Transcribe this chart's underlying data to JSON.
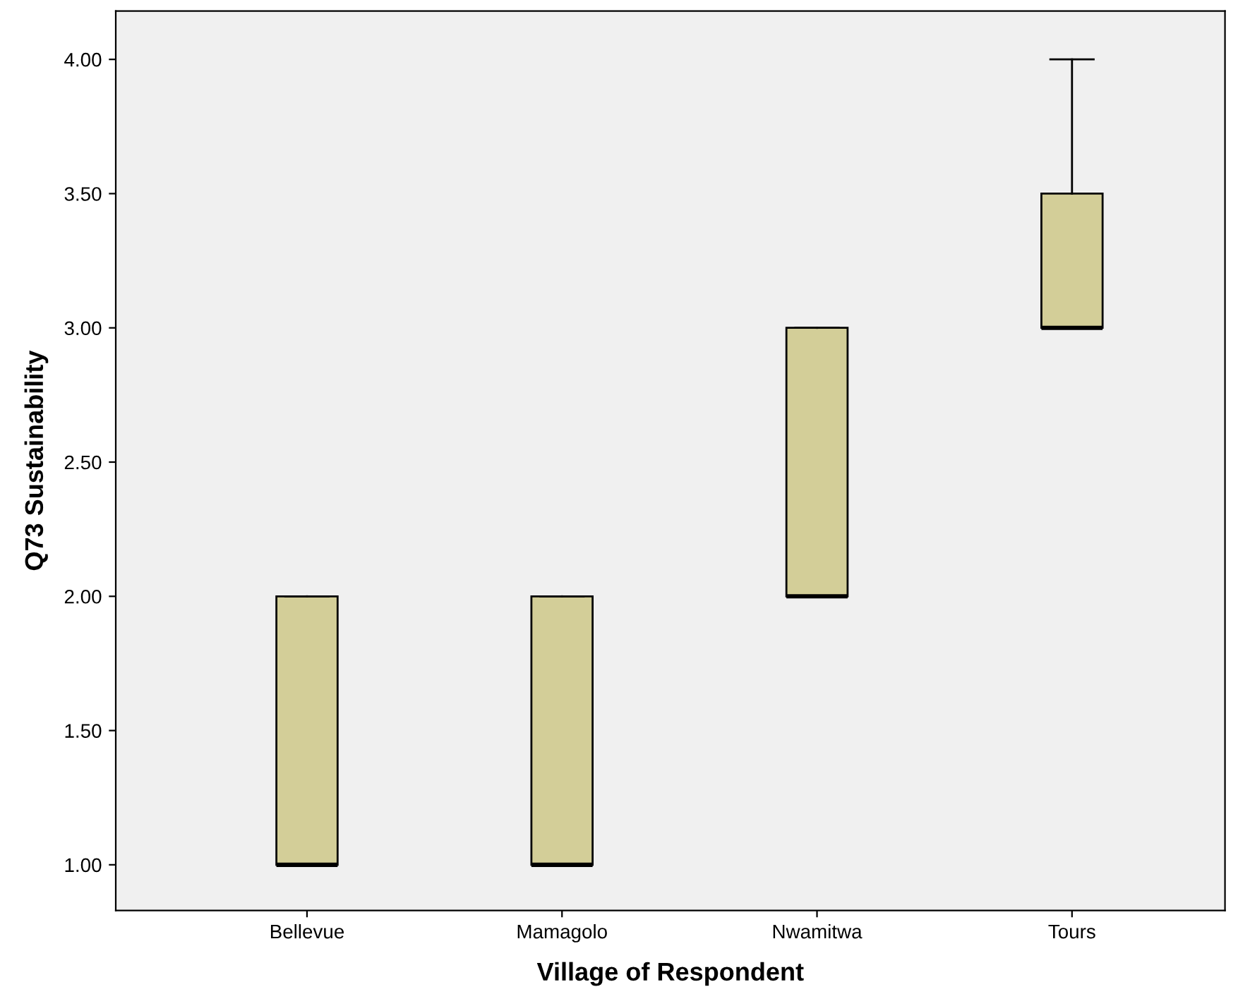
{
  "chart_data": {
    "type": "box",
    "xlabel": "Village of Respondent",
    "ylabel": "Q73 Sustainability",
    "categories": [
      "Bellevue",
      "Mamagolo",
      "Nwamitwa",
      "Tours"
    ],
    "boxes": [
      {
        "low": 1,
        "q1": 1,
        "median": 1,
        "q3": 2,
        "high": 2
      },
      {
        "low": 1,
        "q1": 1,
        "median": 1,
        "q3": 2,
        "high": 2
      },
      {
        "low": 2,
        "q1": 2,
        "median": 2,
        "q3": 3,
        "high": 3
      },
      {
        "low": 3,
        "q1": 3,
        "median": 3,
        "q3": 3.5,
        "high": 4
      }
    ],
    "color": "#d3ce98",
    "ylim": [
      0.83,
      4.18
    ],
    "yticks": [
      {
        "value": 1,
        "label": "1.00"
      },
      {
        "value": 1.5,
        "label": "1.50"
      },
      {
        "value": 2,
        "label": "2.00"
      },
      {
        "value": 2.5,
        "label": "2.50"
      },
      {
        "value": 3,
        "label": "3.00"
      },
      {
        "value": 3.5,
        "label": "3.50"
      },
      {
        "value": 4,
        "label": "4.00"
      }
    ],
    "grid": false
  }
}
